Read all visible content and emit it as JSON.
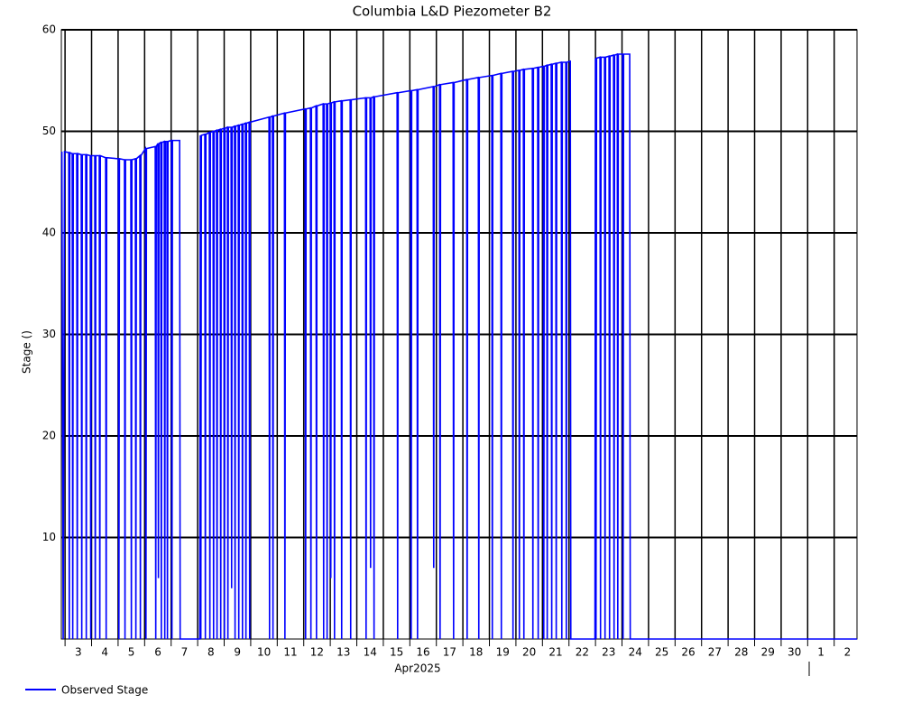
{
  "chart_data": {
    "type": "line",
    "title": "Columbia L&D Piezometer B2",
    "x_label": "Apr2025",
    "y_label": "Stage ()",
    "xlim": [
      2.86,
      32.86
    ],
    "ylim": [
      0,
      60
    ],
    "xticks": [
      3,
      4,
      5,
      6,
      7,
      8,
      9,
      10,
      11,
      12,
      13,
      14,
      15,
      16,
      17,
      18,
      19,
      20,
      21,
      22,
      23,
      24,
      25,
      26,
      27,
      28,
      29,
      30,
      {
        "value": 31,
        "label": "1"
      },
      {
        "value": 32,
        "label": "2"
      }
    ],
    "yticks": [
      10,
      20,
      30,
      40,
      50,
      60
    ],
    "grid": true,
    "legend": "bottom-left",
    "series": [
      {
        "name": "Observed Stage",
        "color": "#0000ff",
        "x": [
          2.88,
          2.93,
          2.98,
          3.14,
          3.16,
          3.18,
          3.27,
          3.29,
          3.31,
          3.44,
          3.46,
          3.48,
          3.61,
          3.63,
          3.65,
          3.78,
          3.8,
          3.82,
          3.95,
          3.97,
          3.99,
          4.12,
          4.14,
          4.16,
          4.29,
          4.31,
          4.33,
          4.53,
          4.55,
          4.57,
          5.01,
          5.03,
          5.05,
          5.24,
          5.26,
          5.28,
          5.48,
          5.5,
          5.52,
          5.65,
          5.67,
          5.69,
          5.82,
          5.84,
          5.86,
          6.03,
          6.05,
          6.07,
          6.4,
          6.42,
          6.44,
          6.5,
          6.52,
          6.54,
          6.61,
          6.63,
          6.65,
          6.74,
          6.76,
          6.78,
          6.84,
          6.86,
          6.88,
          7.01,
          7.03,
          7.05,
          7.32,
          7.34,
          8.08,
          8.1,
          8.12,
          8.14,
          8.27,
          8.29,
          8.31,
          8.44,
          8.46,
          8.48,
          8.58,
          8.6,
          8.62,
          8.71,
          8.73,
          8.75,
          8.85,
          8.87,
          8.89,
          8.99,
          9.01,
          9.03,
          9.12,
          9.14,
          9.16,
          9.26,
          9.28,
          9.3,
          9.39,
          9.41,
          9.43,
          9.53,
          9.55,
          9.57,
          9.67,
          9.69,
          9.71,
          9.8,
          9.82,
          9.84,
          9.94,
          9.96,
          9.98,
          10.69,
          10.71,
          10.73,
          10.82,
          10.84,
          10.86,
          11.27,
          11.29,
          11.31,
          12.05,
          12.07,
          12.09,
          12.25,
          12.27,
          12.29,
          12.46,
          12.48,
          12.5,
          12.73,
          12.75,
          12.77,
          12.86,
          12.88,
          12.9,
          13.0,
          13.02,
          13.04,
          13.14,
          13.16,
          13.18,
          13.41,
          13.43,
          13.45,
          13.75,
          13.77,
          13.79,
          14.33,
          14.35,
          14.37,
          14.5,
          14.52,
          14.54,
          14.63,
          14.65,
          14.67,
          15.52,
          15.54,
          15.56,
          16.03,
          16.05,
          16.07,
          16.27,
          16.29,
          16.31,
          16.88,
          16.9,
          16.92,
          17.12,
          17.14,
          17.16,
          17.63,
          17.65,
          17.67,
          18.14,
          18.16,
          18.18,
          18.58,
          18.6,
          18.62,
          19.09,
          19.11,
          19.13,
          19.43,
          19.45,
          19.47,
          19.87,
          19.89,
          19.91,
          20.11,
          20.13,
          20.15,
          20.28,
          20.3,
          20.32,
          20.62,
          20.64,
          20.66,
          20.82,
          20.84,
          20.86,
          21.03,
          21.05,
          21.07,
          21.16,
          21.18,
          21.2,
          21.33,
          21.35,
          21.37,
          21.5,
          21.52,
          21.54,
          21.71,
          21.73,
          21.75,
          21.88,
          21.9,
          21.92,
          22.05,
          22.07,
          22.98,
          23.0,
          23.02,
          23.04,
          23.17,
          23.19,
          23.21,
          23.34,
          23.36,
          23.38,
          23.51,
          23.53,
          23.55,
          23.68,
          23.7,
          23.72,
          23.82,
          23.84,
          23.86,
          24.02,
          24.04,
          24.06,
          24.29,
          24.31,
          32.86
        ],
        "values": [
          48.0,
          0,
          48.0,
          47.9,
          0,
          47.9,
          47.8,
          0,
          47.8,
          47.8,
          0,
          47.8,
          47.7,
          0,
          47.7,
          47.7,
          0,
          47.7,
          47.6,
          0,
          47.6,
          47.6,
          0,
          47.6,
          47.6,
          0,
          47.6,
          47.4,
          0,
          47.4,
          47.3,
          0,
          47.3,
          47.2,
          0,
          47.2,
          47.2,
          0,
          47.2,
          47.3,
          0,
          47.3,
          47.6,
          0,
          47.6,
          48.3,
          0,
          48.3,
          48.5,
          0,
          48.5,
          48.8,
          6,
          48.8,
          48.9,
          0,
          48.9,
          49.0,
          0,
          49.0,
          49.0,
          0,
          49.0,
          49.1,
          0,
          49.1,
          49.1,
          0,
          0,
          49.6,
          0,
          49.6,
          49.7,
          0,
          49.7,
          49.9,
          0,
          49.9,
          50.0,
          0,
          50.0,
          50.1,
          0,
          50.1,
          50.2,
          0,
          50.2,
          50.3,
          0,
          50.3,
          50.4,
          0,
          50.4,
          50.4,
          5,
          50.4,
          50.5,
          0,
          50.5,
          50.6,
          0,
          50.6,
          50.7,
          0,
          50.7,
          50.8,
          0,
          50.8,
          50.9,
          0,
          50.9,
          51.4,
          0,
          51.4,
          51.5,
          0,
          51.5,
          51.8,
          0,
          51.8,
          52.2,
          0,
          52.2,
          52.3,
          0,
          52.3,
          52.5,
          0,
          52.5,
          52.7,
          0,
          52.7,
          52.7,
          0,
          52.7,
          52.8,
          6,
          52.8,
          52.9,
          0,
          52.9,
          53.0,
          0,
          53.0,
          53.1,
          0,
          53.1,
          53.3,
          0,
          53.3,
          53.3,
          7,
          53.3,
          53.4,
          0,
          53.4,
          53.8,
          0,
          53.8,
          54.0,
          0,
          54.0,
          54.1,
          0,
          54.1,
          54.4,
          7,
          54.4,
          54.6,
          0,
          54.6,
          54.8,
          0,
          54.8,
          55.1,
          0,
          55.1,
          55.3,
          0,
          55.3,
          55.5,
          0,
          55.5,
          55.7,
          0,
          55.7,
          55.9,
          0,
          55.9,
          56.0,
          0,
          56.0,
          56.1,
          0,
          56.1,
          56.2,
          0,
          56.2,
          56.3,
          0,
          56.3,
          56.4,
          0,
          56.4,
          56.5,
          0,
          56.5,
          56.6,
          0,
          56.6,
          56.7,
          0,
          56.7,
          56.8,
          0,
          56.8,
          56.8,
          0,
          56.8,
          56.9,
          0,
          0,
          57.2,
          0,
          57.2,
          57.3,
          0,
          57.3,
          57.3,
          0,
          57.3,
          57.4,
          0,
          57.4,
          57.5,
          0,
          57.5,
          57.6,
          0,
          57.6,
          57.6,
          0,
          57.6,
          57.6,
          0,
          0
        ]
      }
    ]
  }
}
